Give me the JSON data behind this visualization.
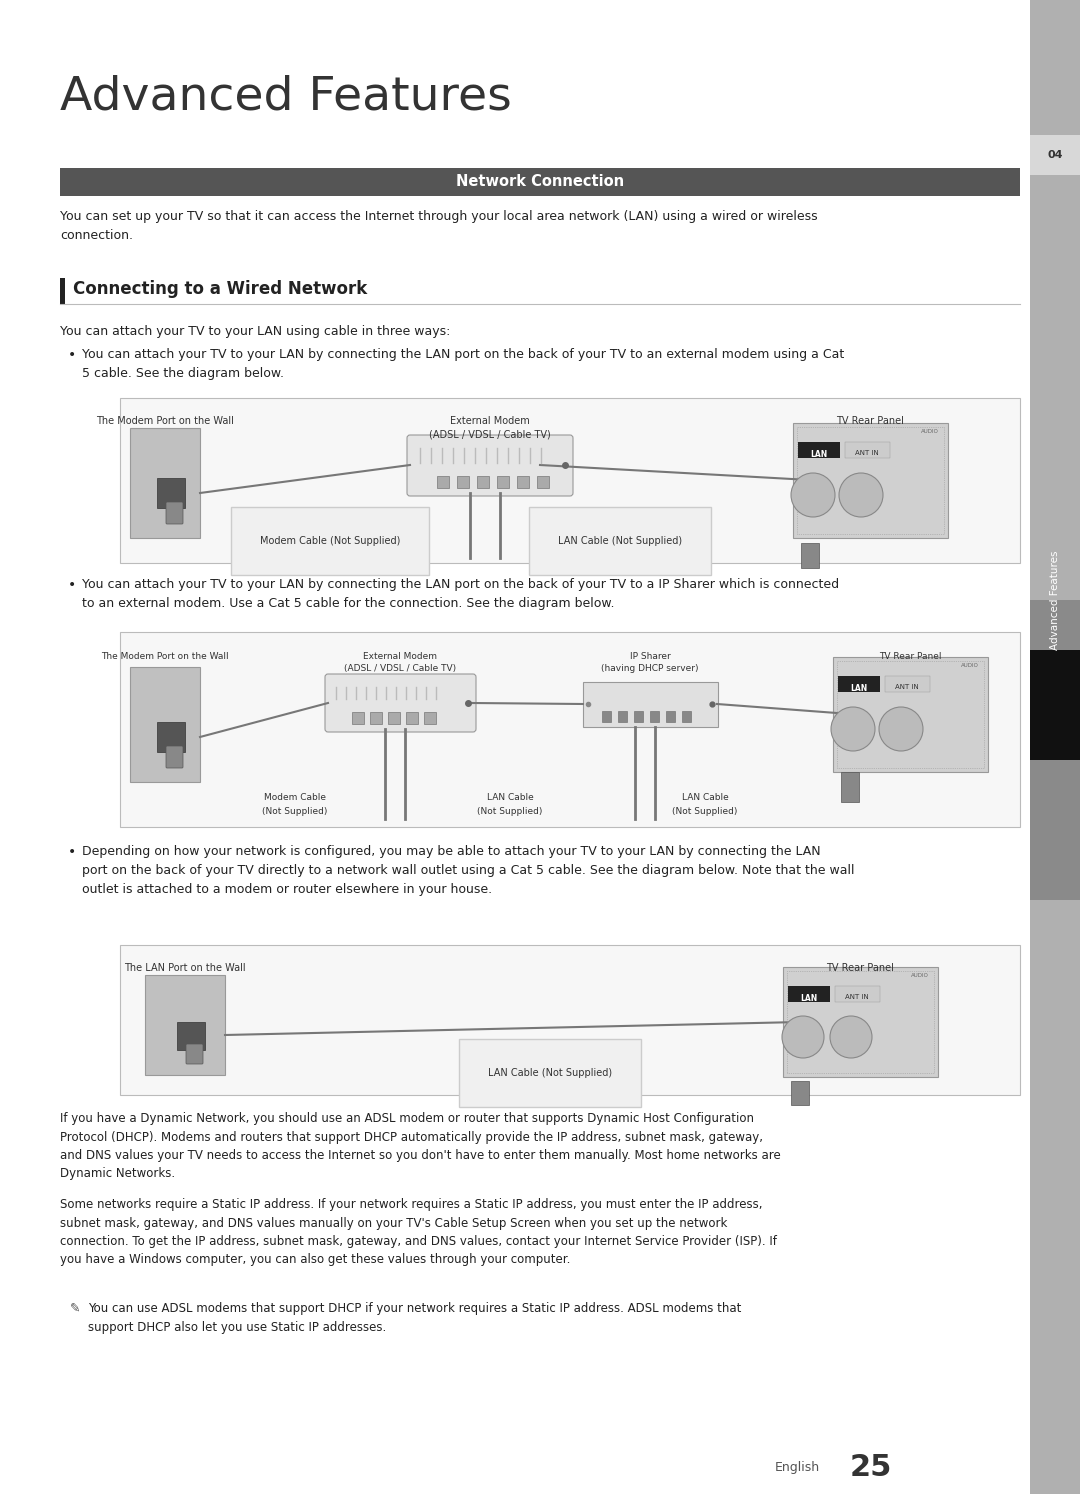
{
  "title": "Advanced Features",
  "section_header": "Network Connection",
  "subsection_title": "Connecting to a Wired Network",
  "page_number": "25",
  "intro_text": "You can set up your TV so that it can access the Internet through your local area network (LAN) using a wired or wireless\nconnection.",
  "wired_intro": "You can attach your TV to your LAN using cable in three ways:",
  "bullet1_text": "You can attach your TV to your LAN by connecting the LAN port on the back of your TV to an external modem using a Cat\n5 cable. See the diagram below.",
  "bullet2_text": "You can attach your TV to your LAN by connecting the LAN port on the back of your TV to a IP Sharer which is connected\nto an external modem. Use a Cat 5 cable for the connection. See the diagram below.",
  "bullet3_text": "Depending on how your network is configured, you may be able to attach your TV to your LAN by connecting the LAN\nport on the back of your TV directly to a network wall outlet using a Cat 5 cable. See the diagram below. Note that the wall\noutlet is attached to a modem or router elsewhere in your house.",
  "dhcp_text": "If you have a Dynamic Network, you should use an ADSL modem or router that supports Dynamic Host Configuration\nProtocol (DHCP). Modems and routers that support DHCP automatically provide the IP address, subnet mask, gateway,\nand DNS values your TV needs to access the Internet so you don't have to enter them manually. Most home networks are\nDynamic Networks.",
  "static_text": "Some networks require a Static IP address. If your network requires a Static IP address, you must enter the IP address,\nsubnet mask, gateway, and DNS values manually on your TV's Cable Setup Screen when you set up the network\nconnection. To get the IP address, subnet mask, gateway, and DNS values, contact your Internet Service Provider (ISP). If\nyou have a Windows computer, you can also get these values through your computer.",
  "note_text": "You can use ADSL modems that support DHCP if your network requires a Static IP address. ADSL modems that\nsupport DHCP also let you use Static IP addresses.",
  "diag1_wall_label": "The Modem Port on the Wall",
  "diag1_modem_label": "External Modem\n(ADSL / VDSL / Cable TV)",
  "diag1_tv_label": "TV Rear Panel",
  "diag1_cable1_label": "Modem Cable (Not Supplied)",
  "diag1_cable2_label": "LAN Cable (Not Supplied)",
  "diag2_wall_label": "The Modem Port on the Wall",
  "diag2_modem_label": "External Modem\n(ADSL / VDSL / Cable TV)",
  "diag2_sharer_label": "IP Sharer\n(having DHCP server)",
  "diag2_tv_label": "TV Rear Panel",
  "diag2_cable1_label": "Modem Cable",
  "diag2_cable1b_label": "(Not Supplied)",
  "diag2_cable2_label": "LAN Cable",
  "diag2_cable2b_label": "(Not Supplied)",
  "diag2_cable3_label": "LAN Cable",
  "diag2_cable3b_label": "(Not Supplied)",
  "diag3_wall_label": "The LAN Port on the Wall",
  "diag3_tv_label": "TV Rear Panel",
  "diag3_cable_label": "LAN Cable (Not Supplied)",
  "sidebar_bg": "#8a8a8a",
  "sidebar_dark": "#333333",
  "sidebar_black": "#111111",
  "header_bg": "#555555",
  "page_bg": "#ffffff",
  "diag_bg": "#f7f7f7",
  "diag_border": "#bbbbbb"
}
